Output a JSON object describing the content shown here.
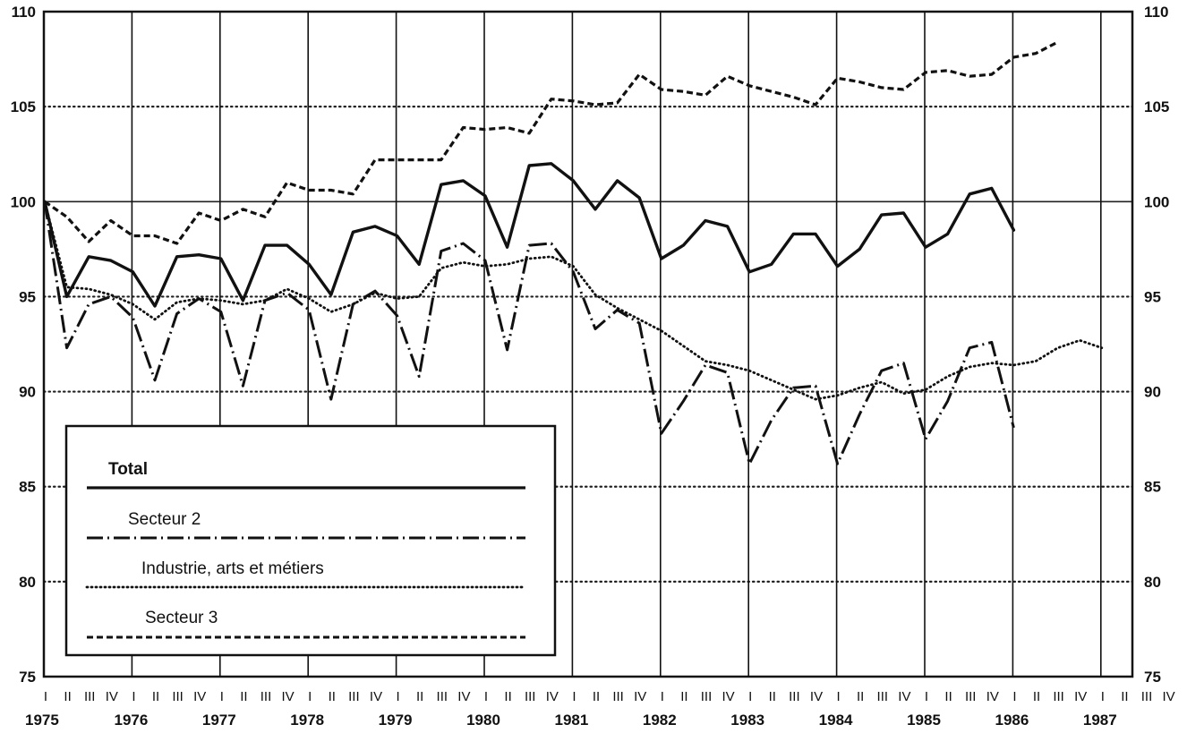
{
  "chart_data": {
    "type": "line",
    "x_labels": [
      "1975 I",
      "1975 II",
      "1975 III",
      "1975 IV",
      "1976 I",
      "1976 II",
      "1976 III",
      "1976 IV",
      "1977 I",
      "1977 II",
      "1977 III",
      "1977 IV",
      "1978 I",
      "1978 II",
      "1978 III",
      "1978 IV",
      "1979 I",
      "1979 II",
      "1979 III",
      "1979 IV",
      "1980 I",
      "1980 II",
      "1980 III",
      "1980 IV",
      "1981 I",
      "1981 II",
      "1981 III",
      "1981 IV",
      "1982 I",
      "1982 II",
      "1982 III",
      "1982 IV",
      "1983 I",
      "1983 II",
      "1983 III",
      "1983 IV",
      "1984 I",
      "1984 II",
      "1984 III",
      "1984 IV",
      "1985 I",
      "1985 II",
      "1985 III",
      "1985 IV",
      "1986 I",
      "1986 II",
      "1986 III",
      "1986 IV",
      "1987 I",
      "1987 II",
      "1987 III",
      "1987 IV"
    ],
    "year_labels": [
      "1975",
      "1976",
      "1977",
      "1978",
      "1979",
      "1980",
      "1981",
      "1982",
      "1983",
      "1984",
      "1985",
      "1986",
      "1987"
    ],
    "quarter_labels": [
      "I",
      "II",
      "III",
      "IV"
    ],
    "ylim": [
      75,
      110
    ],
    "y_ticks": [
      75,
      80,
      85,
      90,
      95,
      100,
      105,
      110
    ],
    "series": [
      {
        "name": "Total",
        "style": "solid",
        "values": [
          100.0,
          95.0,
          97.1,
          96.9,
          96.3,
          94.5,
          97.1,
          97.2,
          97.0,
          94.8,
          97.7,
          97.7,
          96.7,
          95.1,
          98.4,
          98.7,
          98.2,
          96.7,
          100.9,
          101.1,
          100.3,
          97.6,
          101.9,
          102.0,
          101.1,
          99.6,
          101.1,
          100.2,
          97.0,
          97.7,
          99.0,
          98.7,
          96.3,
          96.7,
          98.3,
          98.3,
          96.6,
          97.5,
          99.3,
          99.4,
          97.6,
          98.3,
          100.4,
          100.7,
          98.5
        ]
      },
      {
        "name": "Secteur 2",
        "style": "dashdot",
        "values": [
          100.0,
          92.3,
          94.6,
          95.0,
          93.9,
          90.6,
          94.1,
          94.9,
          94.2,
          90.3,
          94.8,
          95.2,
          94.3,
          89.6,
          94.6,
          95.3,
          94.0,
          90.8,
          97.4,
          97.8,
          96.9,
          92.2,
          97.7,
          97.8,
          96.3,
          93.3,
          94.3,
          93.6,
          87.8,
          89.5,
          91.4,
          91.0,
          86.2,
          88.5,
          90.2,
          90.3,
          86.2,
          88.8,
          91.1,
          91.5,
          87.5,
          89.5,
          92.3,
          92.6,
          88.1
        ]
      },
      {
        "name": "Industrie, arts et métiers",
        "style": "dotted",
        "values": [
          100.0,
          95.5,
          95.4,
          95.1,
          94.6,
          93.8,
          94.7,
          94.9,
          94.8,
          94.6,
          94.8,
          95.4,
          94.9,
          94.2,
          94.6,
          95.2,
          94.9,
          95.0,
          96.5,
          96.8,
          96.6,
          96.7,
          97.0,
          97.1,
          96.6,
          95.1,
          94.4,
          93.8,
          93.2,
          92.4,
          91.6,
          91.4,
          91.1,
          90.6,
          90.1,
          89.6,
          89.8,
          90.2,
          90.5,
          89.9,
          90.1,
          90.8,
          91.3,
          91.5,
          91.4,
          91.6,
          92.3,
          92.7,
          92.3
        ]
      },
      {
        "name": "Secteur 3",
        "style": "dashed",
        "values": [
          100.0,
          99.2,
          97.9,
          99.0,
          98.2,
          98.2,
          97.8,
          99.4,
          99.0,
          99.6,
          99.2,
          101.0,
          100.6,
          100.6,
          100.4,
          102.2,
          102.2,
          102.2,
          102.2,
          103.9,
          103.8,
          103.9,
          103.6,
          105.4,
          105.3,
          105.1,
          105.2,
          106.7,
          105.9,
          105.8,
          105.6,
          106.6,
          106.1,
          105.8,
          105.5,
          105.1,
          106.5,
          106.3,
          106.0,
          105.9,
          106.8,
          106.9,
          106.6,
          106.7,
          107.6,
          107.8,
          108.4
        ]
      }
    ],
    "legend": {
      "title": "Total",
      "entries": [
        "Secteur 2",
        "Industrie, arts et métiers",
        "Secteur 3"
      ],
      "placement": "bottom-left"
    },
    "grid": {
      "horizontal": "dotted",
      "vertical_year_lines": true
    }
  }
}
